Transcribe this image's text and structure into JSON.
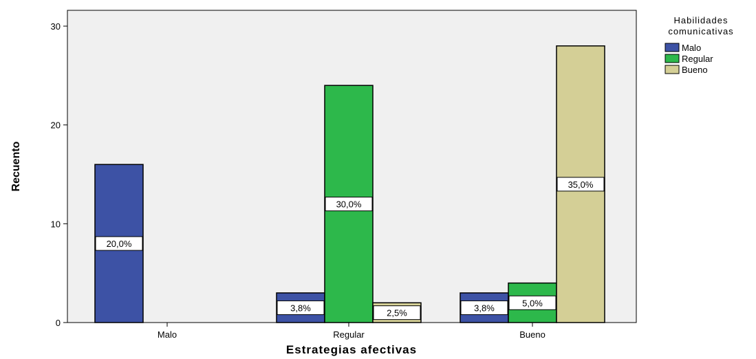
{
  "chart_data": {
    "type": "bar",
    "xlabel": "Estrategias afectivas",
    "ylabel": "Recuento",
    "categories": [
      "Malo",
      "Regular",
      "Bueno"
    ],
    "ylim": [
      0,
      30
    ],
    "yticks": [
      0,
      10,
      20,
      30
    ],
    "grid": false,
    "legend": {
      "title": "Habilidades comunicativas",
      "title_lines": [
        "Habilidades",
        "comunicativas"
      ],
      "placement": "right"
    },
    "series": [
      {
        "name": "Malo",
        "color": "#3d52a5",
        "values": [
          16,
          3,
          3
        ],
        "labels": [
          "20,0%",
          "3,8%",
          "3,8%"
        ]
      },
      {
        "name": "Regular",
        "color": "#2db84b",
        "values": [
          0,
          24,
          4
        ],
        "labels": [
          "",
          "30,0%",
          "5,0%"
        ]
      },
      {
        "name": "Bueno",
        "color": "#d4cf96",
        "values": [
          0,
          2,
          28
        ],
        "labels": [
          "",
          "2,5%",
          "35,0%"
        ]
      }
    ],
    "plot_background": "#f0f0f0"
  }
}
